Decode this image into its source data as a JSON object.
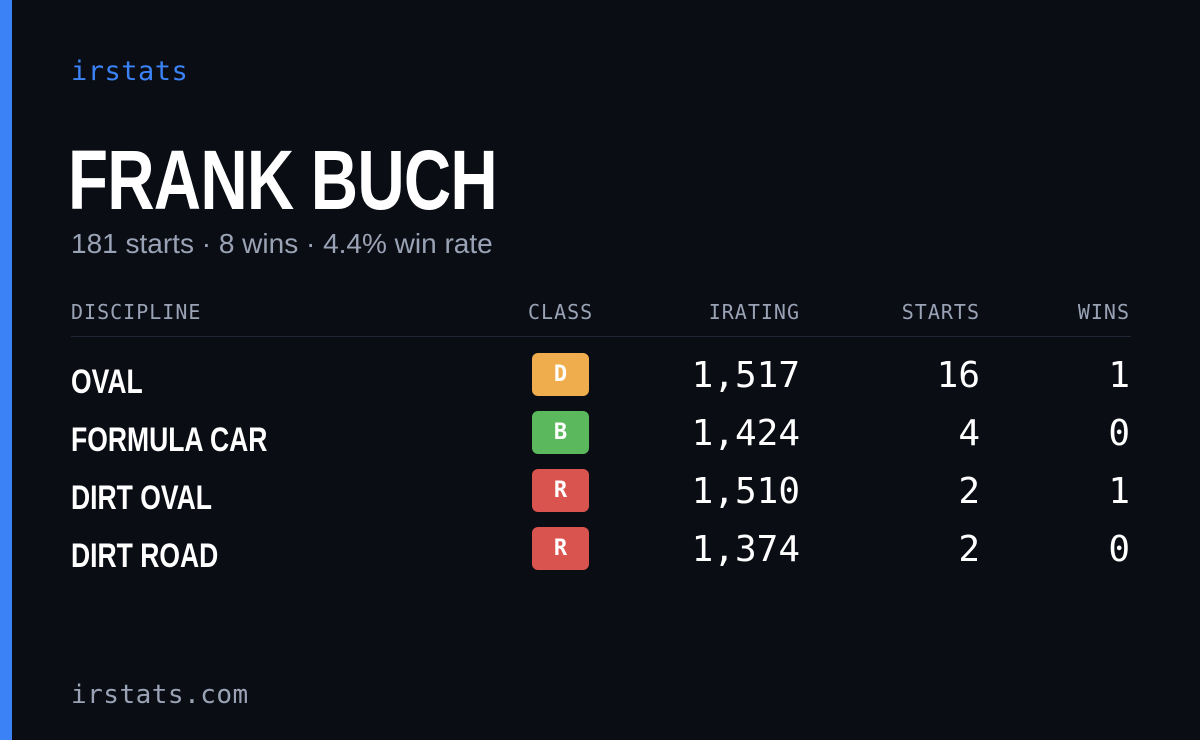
{
  "brand": "irstats",
  "driver": {
    "name": "FRANK BUCH",
    "summary": "181 starts · 8 wins · 4.4% win rate"
  },
  "table": {
    "headers": {
      "discipline": "DISCIPLINE",
      "class": "CLASS",
      "irating": "IRATING",
      "starts": "STARTS",
      "wins": "WINS"
    },
    "rows": [
      {
        "discipline": "OVAL",
        "class": "D",
        "class_color": "#f0ad4e",
        "irating": "1,517",
        "starts": "16",
        "wins": "1"
      },
      {
        "discipline": "FORMULA CAR",
        "class": "B",
        "class_color": "#5cb85c",
        "irating": "1,424",
        "starts": "4",
        "wins": "0"
      },
      {
        "discipline": "DIRT OVAL",
        "class": "R",
        "class_color": "#d9534f",
        "irating": "1,510",
        "starts": "2",
        "wins": "1"
      },
      {
        "discipline": "DIRT ROAD",
        "class": "R",
        "class_color": "#d9534f",
        "irating": "1,374",
        "starts": "2",
        "wins": "0"
      }
    ]
  },
  "footer": "irstats.com",
  "colors": {
    "background": "#0a0d14",
    "accent": "#3b82f6",
    "muted_text": "#9aa3b5"
  }
}
